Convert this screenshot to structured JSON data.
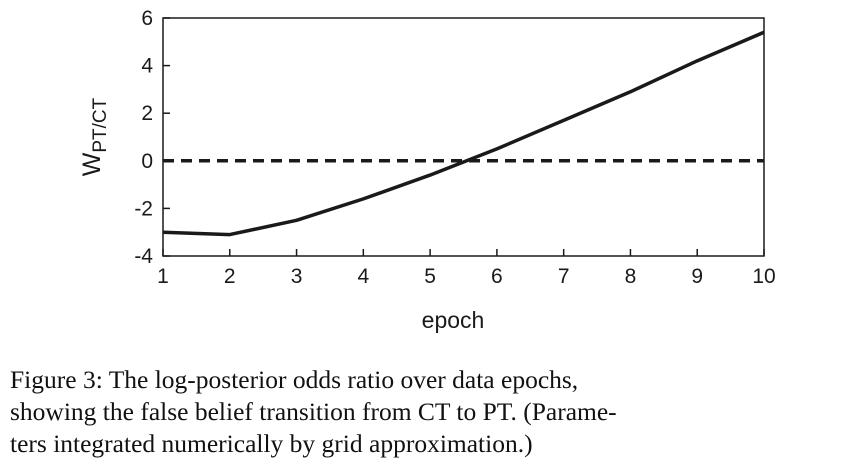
{
  "chart_data": {
    "type": "line",
    "xlabel": "epoch",
    "ylabel_main": "W",
    "ylabel_sub": "PT/CT",
    "xlim": [
      1,
      10
    ],
    "ylim": [
      -4,
      6
    ],
    "xticks": [
      1,
      2,
      3,
      4,
      5,
      6,
      7,
      8,
      9,
      10
    ],
    "yticks": [
      6,
      4,
      2,
      0,
      -2,
      -4
    ],
    "grid": false,
    "series": [
      {
        "style": "solid",
        "color": "#1a1a1a",
        "x": [
          1,
          2,
          3,
          4,
          5,
          6,
          7,
          8,
          9,
          10
        ],
        "y": [
          -3.0,
          -3.1,
          -2.5,
          -1.6,
          -0.6,
          0.5,
          1.7,
          2.9,
          4.2,
          5.4
        ]
      },
      {
        "style": "dashed",
        "color": "#1a1a1a",
        "x": [
          1,
          10
        ],
        "y": [
          0,
          0
        ]
      }
    ]
  },
  "caption": {
    "line1": "Figure 3:  The log-posterior odds ratio over data epochs,",
    "line2": "showing the false belief transition from CT to PT. (Parame-",
    "line3": "ters integrated numerically by grid approximation.)"
  }
}
